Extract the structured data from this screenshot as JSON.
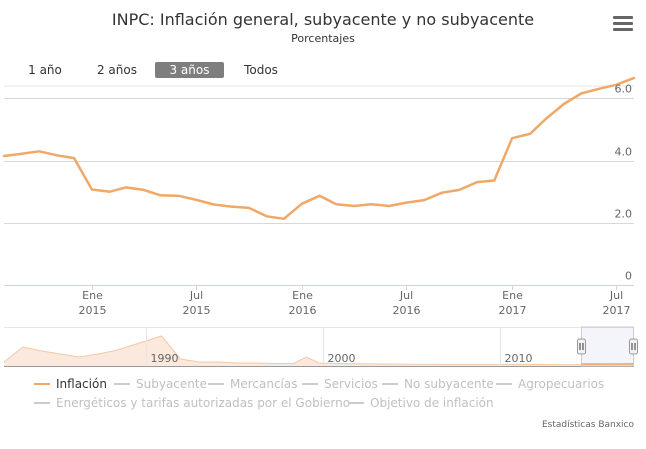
{
  "header": {
    "title": "INPC: Inflación general, subyacente y no subyacente",
    "subtitle": "Porcentajes",
    "menu_icon": "hamburger-menu-icon"
  },
  "range_selector": {
    "buttons": [
      "1 año",
      "2 años",
      "3 años",
      "Todos"
    ],
    "selected": "3 años"
  },
  "navigator": {
    "labels": [
      "1990",
      "2000",
      "2010"
    ]
  },
  "legend": {
    "items": [
      {
        "label": "Inflación",
        "active": true
      },
      {
        "label": "Subyacente",
        "active": false
      },
      {
        "label": "Mercancías",
        "active": false
      },
      {
        "label": "Servicios",
        "active": false
      },
      {
        "label": "No subyacente",
        "active": false
      },
      {
        "label": "Agropecuarios",
        "active": false
      },
      {
        "label": "Energéticos y tarifas autorizadas por el Gobierno",
        "active": false
      },
      {
        "label": "Objetivo de inflación",
        "active": false
      }
    ]
  },
  "credits": "Estadísticas Banxico",
  "colors": {
    "series": "#f0a868",
    "inactive": "#cccccc",
    "grid": "#d8d8d8",
    "navigator_fill": "#fbe9dd"
  },
  "chart_data": {
    "type": "line",
    "title": "INPC: Inflación general, subyacente y no subyacente",
    "subtitle": "Porcentajes",
    "ylim": [
      0,
      6.4
    ],
    "yticks": [
      0,
      2.0,
      4.0,
      6.0
    ],
    "ytick_labels": [
      "0",
      "2.0",
      "4.0",
      "6.0"
    ],
    "xlim": [
      "2014-08-01",
      "2017-08-01"
    ],
    "xticks": [
      {
        "date": "2015-01-01",
        "label": [
          "Ene",
          "2015"
        ]
      },
      {
        "date": "2015-07-01",
        "label": [
          "Jul",
          "2015"
        ]
      },
      {
        "date": "2016-01-01",
        "label": [
          "Ene",
          "2016"
        ]
      },
      {
        "date": "2016-07-01",
        "label": [
          "Jul",
          "2016"
        ]
      },
      {
        "date": "2017-01-01",
        "label": [
          "Ene",
          "2017"
        ]
      },
      {
        "date": "2017-07-01",
        "label": [
          "Jul",
          "2017"
        ]
      }
    ],
    "legend_position": "bottom",
    "series": [
      {
        "name": "Inflación",
        "x": [
          "2014-08",
          "2014-09",
          "2014-10",
          "2014-11",
          "2014-12",
          "2015-01",
          "2015-02",
          "2015-03",
          "2015-04",
          "2015-05",
          "2015-06",
          "2015-07",
          "2015-08",
          "2015-09",
          "2015-10",
          "2015-11",
          "2015-12",
          "2016-01",
          "2016-02",
          "2016-03",
          "2016-04",
          "2016-05",
          "2016-06",
          "2016-07",
          "2016-08",
          "2016-09",
          "2016-10",
          "2016-11",
          "2016-12",
          "2017-01",
          "2017-02",
          "2017-03",
          "2017-04",
          "2017-05",
          "2017-06",
          "2017-07",
          "2017-08"
        ],
        "values": [
          4.15,
          4.22,
          4.3,
          4.17,
          4.08,
          3.07,
          3.0,
          3.14,
          3.06,
          2.88,
          2.87,
          2.74,
          2.59,
          2.52,
          2.48,
          2.21,
          2.13,
          2.61,
          2.87,
          2.6,
          2.54,
          2.6,
          2.54,
          2.65,
          2.73,
          2.97,
          3.06,
          3.31,
          3.36,
          4.72,
          4.86,
          5.35,
          5.82,
          6.16,
          6.31,
          6.44,
          6.66
        ]
      }
    ],
    "navigator": {
      "xlim": [
        "1982-01",
        "2017-08"
      ],
      "labels": [
        "1990",
        "2000",
        "2010"
      ]
    }
  }
}
